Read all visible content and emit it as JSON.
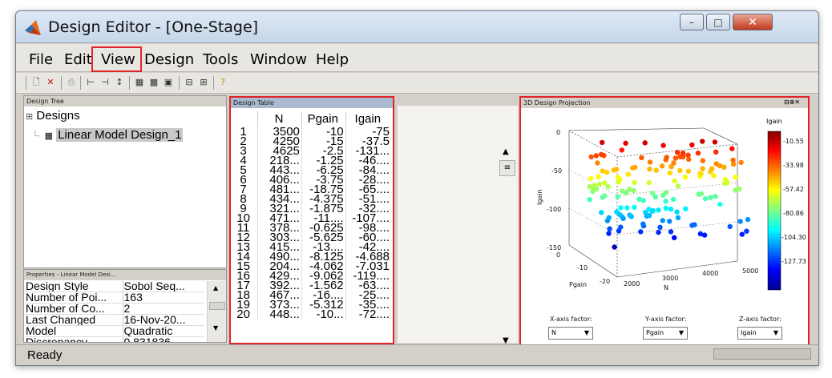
{
  "window": {
    "title": "Design Editor - [One-Stage]",
    "minimize": "–",
    "maximize": "□",
    "close": "✕"
  },
  "menu": [
    "File",
    "Edit",
    "View",
    "Design",
    "Tools",
    "Window",
    "Help"
  ],
  "tree": {
    "header": "Design Tree",
    "root": "Designs",
    "child": "Linear Model Design_1"
  },
  "properties": {
    "header": "Properties - Linear Model Desi...",
    "rows": [
      [
        "Design Style",
        "Sobol Seq..."
      ],
      [
        "Number of Poi...",
        "163"
      ],
      [
        "Number of Co...",
        "2"
      ],
      [
        "Last Changed",
        "16-Nov-20..."
      ],
      [
        "Model",
        "Quadratic"
      ],
      [
        "Discrepancy",
        "0.831836..."
      ]
    ]
  },
  "design_table": {
    "header": "Design Table",
    "columns": [
      "N",
      "Pgain",
      "Igain"
    ],
    "rows": [
      [
        "1",
        "3500",
        "-10",
        "-75"
      ],
      [
        "2",
        "4250",
        "-15",
        "-37.5"
      ],
      [
        "3",
        "4625",
        "-2.5",
        "-131..."
      ],
      [
        "4",
        "218...",
        "-1.25",
        "-46...."
      ],
      [
        "5",
        "443...",
        "-6.25",
        "-84...."
      ],
      [
        "6",
        "406...",
        "-3.75",
        "-28...."
      ],
      [
        "7",
        "481...",
        "-18.75",
        "-65...."
      ],
      [
        "8",
        "434...",
        "-4.375",
        "-51...."
      ],
      [
        "9",
        "321...",
        "-1.875",
        "-32...."
      ],
      [
        "10",
        "471...",
        "-11....",
        "-107...."
      ],
      [
        "11",
        "378...",
        "-0.625",
        "-98...."
      ],
      [
        "12",
        "303...",
        "-5.625",
        "-60...."
      ],
      [
        "13",
        "415...",
        "-13....",
        "-42...."
      ],
      [
        "14",
        "490...",
        "-8.125",
        "-4.688"
      ],
      [
        "15",
        "204...",
        "-4.062",
        "-7.031"
      ],
      [
        "16",
        "429...",
        "-9.062",
        "-119...."
      ],
      [
        "17",
        "392...",
        "-1.562",
        "-63...."
      ],
      [
        "18",
        "467...",
        "-16....",
        "-25...."
      ],
      [
        "19",
        "373...",
        "-5.312",
        "-35...."
      ],
      [
        "20",
        "448...",
        "-10...",
        "-72...."
      ]
    ]
  },
  "projection": {
    "header": "3D Design Projection",
    "chart_data": {
      "type": "scatter",
      "xlabel": "N",
      "ylabel": "Pgain",
      "zlabel": "Igain",
      "x_ticks": [
        "2000",
        "3000",
        "4000",
        "5000"
      ],
      "y_ticks": [
        "-20",
        "-10",
        "0"
      ],
      "z_ticks": [
        "0",
        "-50",
        "-100",
        "-150"
      ],
      "colorbar_title": "Igain",
      "colorbar_ticks": [
        "-10.55",
        "-33.98",
        "-57.42",
        "-80.86",
        "-104.30",
        "-127.73"
      ]
    },
    "x_factor_label": "X-axis factor:",
    "y_factor_label": "Y-axis factor:",
    "z_factor_label": "Z-axis factor:",
    "x_factor": "N",
    "y_factor": "Pgain",
    "z_factor": "Igain"
  },
  "panel_controls": "⊟⊕✕",
  "status": "Ready"
}
